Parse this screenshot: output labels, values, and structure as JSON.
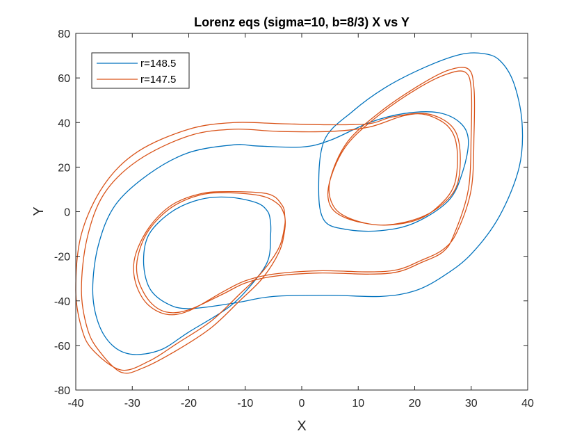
{
  "chart_data": {
    "type": "line",
    "title": "Lorenz eqs (sigma=10, b=8/3) X vs Y",
    "xlabel": "X",
    "ylabel": "Y",
    "xlim": [
      -40,
      40
    ],
    "ylim": [
      -80,
      80
    ],
    "xticks": [
      -40,
      -30,
      -20,
      -10,
      0,
      10,
      20,
      30,
      40
    ],
    "yticks": [
      -80,
      -60,
      -40,
      -20,
      0,
      20,
      40,
      60,
      80
    ],
    "grid": false,
    "legend_position": "top-left",
    "series": [
      {
        "name": "r=148.5",
        "color": "#0072BD",
        "points": [
          [
            -5.5,
            -5
          ],
          [
            -6,
            0
          ],
          [
            -8,
            4
          ],
          [
            -13,
            6.5
          ],
          [
            -18,
            5.5
          ],
          [
            -23,
            0
          ],
          [
            -27,
            -10
          ],
          [
            -28,
            -22
          ],
          [
            -27,
            -34
          ],
          [
            -24,
            -41
          ],
          [
            -20,
            -43.5
          ],
          [
            -12,
            -41
          ],
          [
            -5,
            -38
          ],
          [
            5,
            -37.5
          ],
          [
            14,
            -38
          ],
          [
            20,
            -35.5
          ],
          [
            25,
            -29
          ],
          [
            30,
            -19
          ],
          [
            35,
            -2
          ],
          [
            38.5,
            20
          ],
          [
            39,
            40
          ],
          [
            37.5,
            58
          ],
          [
            35,
            68
          ],
          [
            32,
            71
          ],
          [
            28,
            70.5
          ],
          [
            22,
            65
          ],
          [
            15,
            56
          ],
          [
            9,
            45
          ],
          [
            4,
            32
          ],
          [
            3,
            10
          ],
          [
            4,
            -4
          ],
          [
            8,
            -8
          ],
          [
            14,
            -8.5
          ],
          [
            20,
            -5
          ],
          [
            26,
            5
          ],
          [
            28.5,
            18
          ],
          [
            29.5,
            32
          ],
          [
            28,
            40
          ],
          [
            24,
            44.5
          ],
          [
            18,
            44
          ],
          [
            12,
            40
          ],
          [
            5,
            32
          ],
          [
            0,
            29
          ],
          [
            -8,
            29.5
          ],
          [
            -12,
            30
          ],
          [
            -20,
            26.5
          ],
          [
            -27,
            17
          ],
          [
            -33,
            3
          ],
          [
            -36,
            -15
          ],
          [
            -37,
            -35
          ],
          [
            -36,
            -50
          ],
          [
            -33.5,
            -60
          ],
          [
            -30,
            -64
          ],
          [
            -25,
            -62
          ],
          [
            -20,
            -54
          ],
          [
            -13,
            -43
          ],
          [
            -9,
            -33
          ],
          [
            -6,
            -22
          ],
          [
            -5.5,
            -10
          ],
          [
            -5.5,
            -5
          ]
        ]
      },
      {
        "name": "r=147.5",
        "color": "#D95319",
        "points": [
          [
            -3,
            -2
          ],
          [
            -4,
            3
          ],
          [
            -7,
            7
          ],
          [
            -13,
            8.5
          ],
          [
            -18,
            7.5
          ],
          [
            -23,
            2
          ],
          [
            -27,
            -8
          ],
          [
            -29,
            -20
          ],
          [
            -29,
            -30
          ],
          [
            -27,
            -40
          ],
          [
            -24,
            -45
          ],
          [
            -20,
            -44
          ],
          [
            -14,
            -37
          ],
          [
            -10,
            -32
          ],
          [
            -5,
            -29
          ],
          [
            3,
            -27.5
          ],
          [
            12,
            -28
          ],
          [
            17,
            -27
          ],
          [
            21,
            -23
          ],
          [
            25,
            -18
          ],
          [
            27,
            -10
          ],
          [
            29.5,
            10
          ],
          [
            30,
            35
          ],
          [
            30,
            55
          ],
          [
            29,
            62.5
          ],
          [
            26,
            62
          ],
          [
            21,
            56
          ],
          [
            14,
            44
          ],
          [
            8,
            30
          ],
          [
            5,
            14
          ],
          [
            5,
            3
          ],
          [
            8,
            -3
          ],
          [
            14,
            -6
          ],
          [
            20,
            -4
          ],
          [
            24,
            2
          ],
          [
            27,
            12
          ],
          [
            27.5,
            28
          ],
          [
            26,
            38
          ],
          [
            22,
            43.5
          ],
          [
            18,
            43
          ],
          [
            12,
            38
          ],
          [
            5,
            36
          ],
          [
            -4,
            36
          ],
          [
            -12,
            37
          ],
          [
            -20,
            34
          ],
          [
            -29,
            23
          ],
          [
            -35,
            8
          ],
          [
            -38,
            -12
          ],
          [
            -39,
            -35
          ],
          [
            -38,
            -52
          ],
          [
            -36,
            -62
          ],
          [
            -32,
            -72
          ],
          [
            -28,
            -70
          ],
          [
            -22,
            -62
          ],
          [
            -16,
            -52
          ],
          [
            -11,
            -40
          ],
          [
            -7,
            -30
          ],
          [
            -4,
            -18
          ],
          [
            -3,
            -8
          ],
          [
            -3,
            -2
          ],
          [
            -3.5,
            3
          ],
          [
            -6,
            8
          ],
          [
            -13,
            9
          ],
          [
            -18,
            8
          ],
          [
            -23,
            3
          ],
          [
            -27,
            -7
          ],
          [
            -29.5,
            -20
          ],
          [
            -29.5,
            -31
          ],
          [
            -27.5,
            -41
          ],
          [
            -24,
            -46
          ],
          [
            -20,
            -44.5
          ],
          [
            -14,
            -36
          ],
          [
            -10,
            -31
          ],
          [
            -5,
            -28
          ],
          [
            3,
            -26.5
          ],
          [
            12,
            -27
          ],
          [
            17,
            -26
          ],
          [
            21,
            -22
          ],
          [
            25,
            -17
          ],
          [
            27.5,
            -9
          ],
          [
            30,
            10
          ],
          [
            30.5,
            35
          ],
          [
            30.5,
            55
          ],
          [
            29.5,
            64
          ],
          [
            26,
            63.5
          ],
          [
            21,
            57
          ],
          [
            14,
            45
          ],
          [
            8,
            31
          ],
          [
            5,
            14
          ],
          [
            5.5,
            3
          ],
          [
            8.5,
            -3
          ],
          [
            14,
            -6
          ],
          [
            20,
            -3.5
          ],
          [
            24.5,
            2.5
          ],
          [
            27.5,
            12
          ],
          [
            28,
            28
          ],
          [
            26.5,
            38.5
          ],
          [
            22,
            44
          ],
          [
            16,
            42.5
          ],
          [
            12,
            39.5
          ],
          [
            5,
            39
          ],
          [
            -4,
            39.5
          ],
          [
            -12,
            40
          ],
          [
            -20,
            37
          ],
          [
            -29,
            27
          ],
          [
            -35,
            12
          ],
          [
            -39,
            -10
          ],
          [
            -40,
            -35
          ],
          [
            -39,
            -52
          ],
          [
            -37,
            -62
          ],
          [
            -32,
            -71
          ],
          [
            -27,
            -67
          ],
          [
            -22,
            -59
          ],
          [
            -16,
            -49
          ],
          [
            -11,
            -37
          ],
          [
            -7,
            -27
          ],
          [
            -4,
            -16
          ],
          [
            -3,
            -6
          ],
          [
            -3,
            -2
          ]
        ]
      }
    ]
  }
}
